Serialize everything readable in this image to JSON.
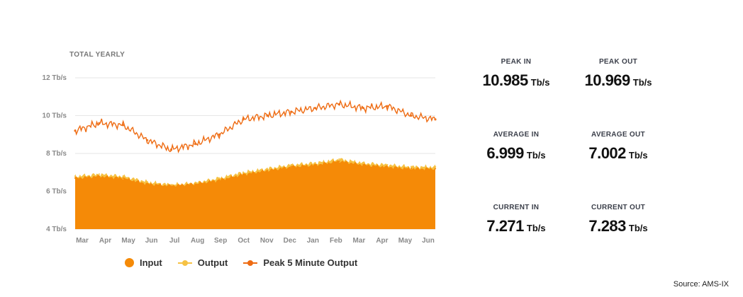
{
  "chart_title": "TOTAL YEARLY",
  "chart_data": {
    "type": "area",
    "title": "TOTAL YEARLY",
    "ylim": [
      4,
      12
    ],
    "y_unit": "Tb/s",
    "y_ticks": [
      "4 Tb/s",
      "6 Tb/s",
      "8 Tb/s",
      "10 Tb/s",
      "12 Tb/s"
    ],
    "y_tick_values": [
      4,
      6,
      8,
      10,
      12
    ],
    "x_ticks": [
      "Mar",
      "Apr",
      "May",
      "Jun",
      "Jul",
      "Aug",
      "Sep",
      "Oct",
      "Nov",
      "Dec",
      "Jan",
      "Feb",
      "Mar",
      "Apr",
      "May",
      "Jun"
    ],
    "x": [
      "Mar",
      "Apr",
      "May",
      "Jun",
      "Jul",
      "Aug",
      "Sep",
      "Oct",
      "Nov",
      "Dec",
      "Jan",
      "Feb",
      "Mar",
      "Apr",
      "May",
      "Jun"
    ],
    "grid": true,
    "series": [
      {
        "name": "Input",
        "kind": "area",
        "color": "#f58a07",
        "values": [
          6.7,
          6.8,
          6.7,
          6.4,
          6.3,
          6.4,
          6.6,
          6.9,
          7.1,
          7.3,
          7.4,
          7.6,
          7.4,
          7.3,
          7.2,
          7.2
        ]
      },
      {
        "name": "Output",
        "kind": "area",
        "color": "#f6c244",
        "values": [
          6.8,
          6.9,
          6.8,
          6.5,
          6.35,
          6.45,
          6.7,
          7.0,
          7.2,
          7.4,
          7.5,
          7.7,
          7.5,
          7.4,
          7.3,
          7.3
        ]
      },
      {
        "name": "Peak 5 Minute Output",
        "kind": "line",
        "color": "#ee6b12",
        "values": [
          9.2,
          9.6,
          9.5,
          8.7,
          8.2,
          8.5,
          9.0,
          9.8,
          10.0,
          10.2,
          10.4,
          10.6,
          10.4,
          10.5,
          10.0,
          9.8
        ]
      }
    ]
  },
  "legend": [
    {
      "label": "Input",
      "color": "#f58a07",
      "style": "dot"
    },
    {
      "label": "Output",
      "color": "#f6c244",
      "style": "line-dot"
    },
    {
      "label": "Peak 5 Minute Output",
      "color": "#ee6b12",
      "style": "line-dot"
    }
  ],
  "stats": {
    "peak_in": {
      "label": "PEAK IN",
      "value": "10.985",
      "unit": "Tb/s"
    },
    "peak_out": {
      "label": "PEAK OUT",
      "value": "10.969",
      "unit": "Tb/s"
    },
    "average_in": {
      "label": "AVERAGE IN",
      "value": "6.999",
      "unit": "Tb/s"
    },
    "average_out": {
      "label": "AVERAGE OUT",
      "value": "7.002",
      "unit": "Tb/s"
    },
    "current_in": {
      "label": "CURRENT IN",
      "value": "7.271",
      "unit": "Tb/s"
    },
    "current_out": {
      "label": "CURRENT OUT",
      "value": "7.283",
      "unit": "Tb/s"
    }
  },
  "source": "Source: AMS-IX"
}
